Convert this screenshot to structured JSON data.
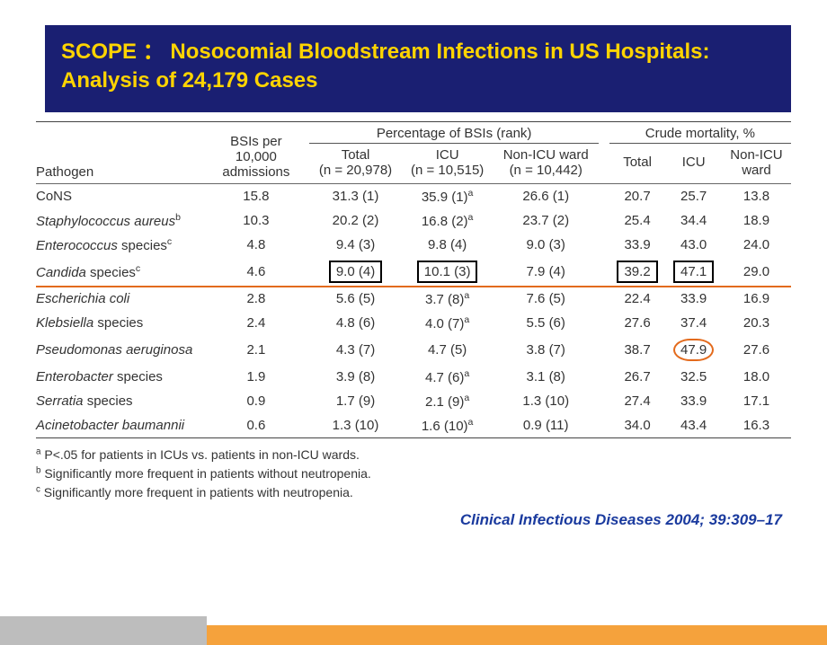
{
  "title_bar": {
    "bg": "#1a1f72",
    "color": "#ffd400",
    "text": "SCOPE ： Nosocomial Bloodstream Infections in US Hospitals: Analysis of 24,179 Cases"
  },
  "table": {
    "group_labels": {
      "pct": "Percentage of BSIs (rank)",
      "mort": "Crude mortality, %"
    },
    "headers": {
      "pathogen": "Pathogen",
      "bsis": "BSIs per\n10,000\nadmissions",
      "total_pct": "Total\n(n = 20,978)",
      "icu_pct": "ICU\n(n = 10,515)",
      "nonicu_pct": "Non-ICU ward\n(n = 10,442)",
      "total_m": "Total",
      "icu_m": "ICU",
      "nonicu_m": "Non-ICU\nward"
    },
    "rows": [
      {
        "pathogen_html": "CoNS",
        "bsis": "15.8",
        "total_pct": "31.3 (1)",
        "icu_pct": "35.9 (1)",
        "icu_sup": "a",
        "nonicu_pct": "26.6 (1)",
        "total_m": "20.7",
        "icu_m": "25.7",
        "nonicu_m": "13.8"
      },
      {
        "pathogen_html": "<span class=\"italic\">Staphylococcus aureus</span><sup>b</sup>",
        "bsis": "10.3",
        "total_pct": "20.2 (2)",
        "icu_pct": "16.8 (2)",
        "icu_sup": "a",
        "nonicu_pct": "23.7 (2)",
        "total_m": "25.4",
        "icu_m": "34.4",
        "nonicu_m": "18.9"
      },
      {
        "pathogen_html": "<span class=\"italic\">Enterococcus</span> species<sup>c</sup>",
        "bsis": "4.8",
        "total_pct": "9.4 (3)",
        "icu_pct": "9.8 (4)",
        "nonicu_pct": "9.0 (3)",
        "total_m": "33.9",
        "icu_m": "43.0",
        "nonicu_m": "24.0"
      },
      {
        "pathogen_html": "<span class=\"italic\">Candida</span> species<sup>c</sup>",
        "bsis": "4.6",
        "total_pct": "9.0 (4)",
        "total_pct_box": true,
        "icu_pct": "10.1 (3)",
        "icu_pct_box": true,
        "nonicu_pct": "7.9 (4)",
        "total_m": "39.2",
        "total_m_box": true,
        "icu_m": "47.1",
        "icu_m_box": true,
        "nonicu_m": "29.0",
        "highlight": true
      },
      {
        "pathogen_html": "<span class=\"italic\">Escherichia coli</span>",
        "bsis": "2.8",
        "total_pct": "5.6 (5)",
        "icu_pct": "3.7 (8)",
        "icu_sup": "a",
        "nonicu_pct": "7.6 (5)",
        "total_m": "22.4",
        "icu_m": "33.9",
        "nonicu_m": "16.9"
      },
      {
        "pathogen_html": "<span class=\"italic\">Klebsiella</span> species",
        "bsis": "2.4",
        "total_pct": "4.8 (6)",
        "icu_pct": "4.0 (7)",
        "icu_sup": "a",
        "nonicu_pct": "5.5 (6)",
        "total_m": "27.6",
        "icu_m": "37.4",
        "nonicu_m": "20.3"
      },
      {
        "pathogen_html": "<span class=\"italic\">Pseudomonas aeruginosa</span>",
        "bsis": "2.1",
        "total_pct": "4.3 (7)",
        "icu_pct": "4.7 (5)",
        "nonicu_pct": "3.8 (7)",
        "total_m": "38.7",
        "icu_m": "47.9",
        "icu_m_circle": true,
        "nonicu_m": "27.6"
      },
      {
        "pathogen_html": "<span class=\"italic\">Enterobacter</span> species",
        "bsis": "1.9",
        "total_pct": "3.9 (8)",
        "icu_pct": "4.7 (6)",
        "icu_sup": "a",
        "nonicu_pct": "3.1 (8)",
        "total_m": "26.7",
        "icu_m": "32.5",
        "nonicu_m": "18.0"
      },
      {
        "pathogen_html": "<span class=\"italic\">Serratia</span> species",
        "bsis": "0.9",
        "total_pct": "1.7 (9)",
        "icu_pct": "2.1 (9)",
        "icu_sup": "a",
        "nonicu_pct": "1.3 (10)",
        "total_m": "27.4",
        "icu_m": "33.9",
        "nonicu_m": "17.1"
      },
      {
        "pathogen_html": "<span class=\"italic\">Acinetobacter baumannii</span>",
        "bsis": "0.6",
        "total_pct": "1.3 (10)",
        "icu_pct": "1.6 (10)",
        "icu_sup": "a",
        "nonicu_pct": "0.9 (11)",
        "total_m": "34.0",
        "icu_m": "43.4",
        "nonicu_m": "16.3"
      }
    ]
  },
  "footnotes": {
    "a": "P<.05 for patients in ICUs vs. patients in non-ICU wards.",
    "b": "Significantly more frequent in patients without neutropenia.",
    "c": "Significantly more frequent in patients with neutropenia."
  },
  "citation": {
    "text": "Clinical Infectious Diseases 2004; 39:309–17",
    "color": "#1a3a9e"
  },
  "bottom": {
    "grey": "#bdbdbd",
    "orange": "#f5a23c"
  }
}
